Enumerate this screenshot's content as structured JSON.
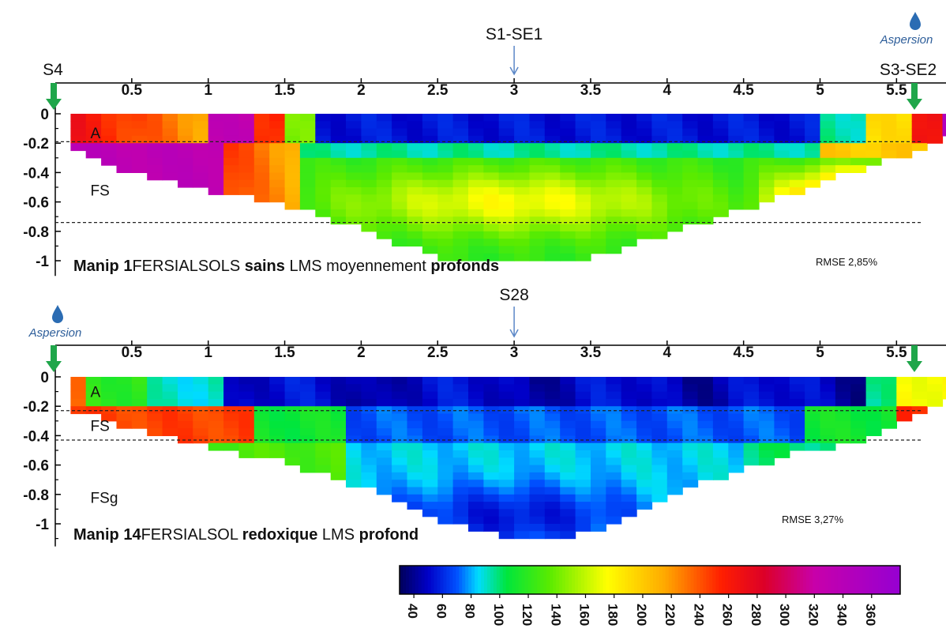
{
  "panels": [
    {
      "name": "manip-1",
      "marker_top": "S1-SE1",
      "left_marker": "S4",
      "right_marker": "S3-SE2",
      "aspersion": "Aspersion",
      "aspersion_side": "right",
      "title_bold": "Manip 1",
      "title_parts": [
        {
          "text": "FERSIALSOLS ",
          "bold": false
        },
        {
          "text": "sains",
          "bold": true
        },
        {
          "text": " LMS moyennement ",
          "bold": false
        },
        {
          "text": "profonds",
          "bold": true
        }
      ],
      "rmse": "RMSE 2,85%",
      "horizon_labels": [
        {
          "text": "A",
          "x": 0.23,
          "y": -0.13
        },
        {
          "text": "FS",
          "x": 0.23,
          "y": -0.52
        }
      ],
      "horizon_lines": [
        -0.19,
        -0.74
      ],
      "depth_profile": [
        [
          0.1,
          -0.2
        ],
        [
          0.3,
          -0.3
        ],
        [
          0.6,
          -0.4
        ],
        [
          1.0,
          -0.5
        ],
        [
          1.3,
          -0.55
        ],
        [
          1.6,
          -0.62
        ],
        [
          1.9,
          -0.72
        ],
        [
          2.2,
          -0.85
        ],
        [
          2.5,
          -0.95
        ],
        [
          2.8,
          -1.0
        ],
        [
          3.1,
          -1.0
        ],
        [
          3.4,
          -0.98
        ],
        [
          3.7,
          -0.9
        ],
        [
          4.0,
          -0.8
        ],
        [
          4.3,
          -0.7
        ],
        [
          4.6,
          -0.6
        ],
        [
          4.9,
          -0.48
        ],
        [
          5.2,
          -0.38
        ],
        [
          5.5,
          -0.28
        ],
        [
          5.8,
          -0.18
        ],
        [
          5.9,
          -0.1
        ]
      ]
    },
    {
      "name": "manip-14",
      "marker_top": "S28",
      "aspersion": "Aspersion",
      "aspersion_side": "left",
      "title_bold": "Manip 14",
      "title_parts": [
        {
          "text": "FERSIALSOL ",
          "bold": false
        },
        {
          "text": "redoxique",
          "bold": true
        },
        {
          "text": " LMS ",
          "bold": false
        },
        {
          "text": "profond",
          "bold": true
        }
      ],
      "rmse": "RMSE 3,27%",
      "horizon_labels": [
        {
          "text": "A",
          "x": 0.23,
          "y": -0.1
        },
        {
          "text": "FS",
          "x": 0.23,
          "y": -0.33
        },
        {
          "text": "FSg",
          "x": 0.23,
          "y": -0.82
        }
      ],
      "horizon_lines": [
        -0.23,
        -0.43
      ],
      "depth_profile": [
        [
          0.1,
          -0.2
        ],
        [
          0.4,
          -0.3
        ],
        [
          0.8,
          -0.4
        ],
        [
          1.2,
          -0.5
        ],
        [
          1.5,
          -0.55
        ],
        [
          1.8,
          -0.65
        ],
        [
          2.1,
          -0.75
        ],
        [
          2.4,
          -0.9
        ],
        [
          2.7,
          -1.02
        ],
        [
          3.0,
          -1.07
        ],
        [
          3.3,
          -1.07
        ],
        [
          3.6,
          -1.0
        ],
        [
          3.9,
          -0.85
        ],
        [
          4.2,
          -0.72
        ],
        [
          4.5,
          -0.6
        ],
        [
          4.8,
          -0.5
        ],
        [
          5.1,
          -0.45
        ],
        [
          5.4,
          -0.35
        ],
        [
          5.7,
          -0.22
        ],
        [
          5.9,
          -0.12
        ]
      ]
    }
  ],
  "chart_data": [
    {
      "type": "heatmap",
      "x_ticks": [
        "0.5",
        "1",
        "1.5",
        "2",
        "2.5",
        "3",
        "3.5",
        "4",
        "4.5",
        "5",
        "5.5"
      ],
      "x_tick_values": [
        0.5,
        1,
        1.5,
        2,
        2.5,
        3,
        3.5,
        4,
        4.5,
        5,
        5.5
      ],
      "y_ticks": [
        "0",
        "-0.2",
        "-0.4",
        "-0.6",
        "-0.8",
        "-1"
      ],
      "y_tick_values": [
        0,
        -0.2,
        -0.4,
        -0.6,
        -0.8,
        -1
      ],
      "xlim": [
        0.0,
        6.0
      ],
      "ylim": [
        -1.05,
        0.0
      ],
      "value_range": [
        40,
        380
      ],
      "title": "Manip 1 FERSIALSOLS sains LMS moyennement profonds",
      "pattern": "manip1"
    },
    {
      "type": "heatmap",
      "x_ticks": [
        "0.5",
        "1",
        "1.5",
        "2",
        "2.5",
        "3",
        "3.5",
        "4",
        "4.5",
        "5",
        "5.5"
      ],
      "x_tick_values": [
        0.5,
        1,
        1.5,
        2,
        2.5,
        3,
        3.5,
        4,
        4.5,
        5,
        5.5
      ],
      "y_ticks": [
        "0",
        "-0.2",
        "-0.4",
        "-0.6",
        "-0.8",
        "-1"
      ],
      "y_tick_values": [
        0,
        -0.2,
        -0.4,
        -0.6,
        -0.8,
        -1
      ],
      "xlim": [
        0.0,
        6.0
      ],
      "ylim": [
        -1.1,
        0.0
      ],
      "value_range": [
        40,
        380
      ],
      "title": "Manip 14 FERSIALSOL redoxique LMS profond",
      "pattern": "manip14"
    }
  ],
  "colorbar": {
    "ticks": [
      "40",
      "60",
      "80",
      "100",
      "120",
      "140",
      "160",
      "180",
      "200",
      "220",
      "240",
      "260",
      "280",
      "300",
      "320",
      "340",
      "360"
    ],
    "tick_values": [
      40,
      60,
      80,
      100,
      120,
      140,
      160,
      180,
      200,
      220,
      240,
      260,
      280,
      300,
      320,
      340,
      360
    ],
    "range": [
      30,
      380
    ]
  },
  "colors": {
    "marker_arrow": "#1fa64a",
    "top_arrow": "#5b87c7",
    "aspersion_text": "#2e5e9a",
    "drop": "#2b6cb3"
  }
}
